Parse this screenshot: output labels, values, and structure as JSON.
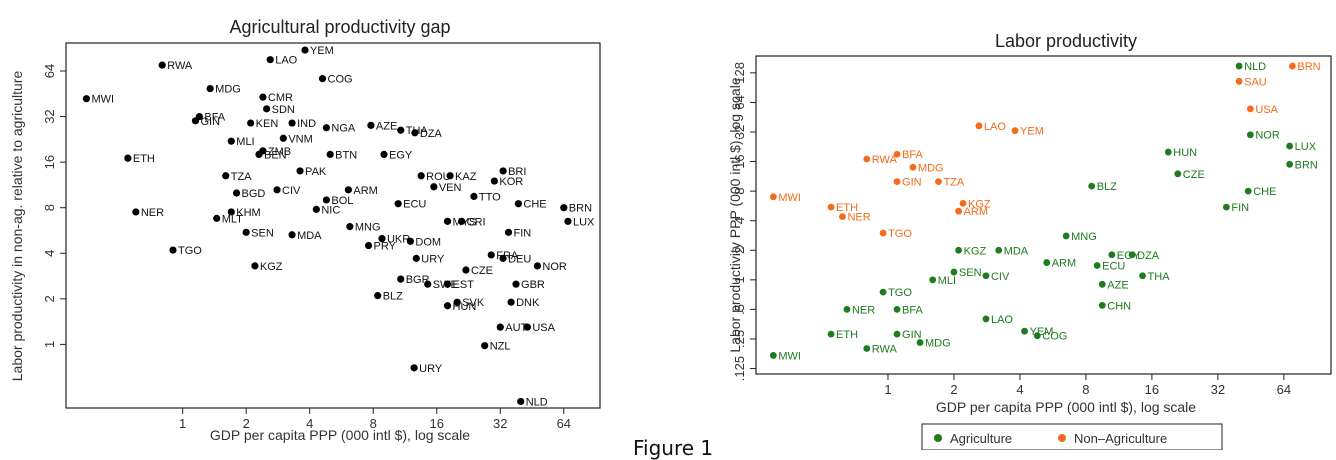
{
  "caption": "Figure 1",
  "chart_data": [
    {
      "type": "scatter",
      "title": "Agricultural productivity gap",
      "xlabel": "GDP per capita PPP (000 intl $), log scale",
      "ylabel": "Labor productivity in non-ag. relative to agriculture",
      "xscale": "log",
      "yscale": "log",
      "xticks": [
        "1",
        "2",
        "4",
        "8",
        "16",
        "32",
        "64"
      ],
      "yticks": [
        "1",
        "2",
        "4",
        "8",
        "16",
        "32",
        "64"
      ],
      "grid": false,
      "points": [
        {
          "label": "RWA",
          "x": 0.8,
          "y": 70
        },
        {
          "label": "LAO",
          "x": 2.6,
          "y": 76
        },
        {
          "label": "YEM",
          "x": 3.8,
          "y": 88
        },
        {
          "label": "COG",
          "x": 4.6,
          "y": 57
        },
        {
          "label": "MWI",
          "x": 0.35,
          "y": 42
        },
        {
          "label": "MDG",
          "x": 1.35,
          "y": 49
        },
        {
          "label": "CMR",
          "x": 2.4,
          "y": 43
        },
        {
          "label": "SDN",
          "x": 2.5,
          "y": 36
        },
        {
          "label": "BFA",
          "x": 1.2,
          "y": 32
        },
        {
          "label": "GIN",
          "x": 1.15,
          "y": 30
        },
        {
          "label": "KEN",
          "x": 2.1,
          "y": 29
        },
        {
          "label": "IND",
          "x": 3.3,
          "y": 29
        },
        {
          "label": "NGA",
          "x": 4.8,
          "y": 27
        },
        {
          "label": "AZE",
          "x": 7.8,
          "y": 28
        },
        {
          "label": "THA",
          "x": 10.8,
          "y": 26
        },
        {
          "label": "DZA",
          "x": 12.6,
          "y": 25
        },
        {
          "label": "MLI",
          "x": 1.7,
          "y": 22
        },
        {
          "label": "VNM",
          "x": 3.0,
          "y": 23
        },
        {
          "label": "ZMB",
          "x": 2.4,
          "y": 19
        },
        {
          "label": "BEN",
          "x": 2.3,
          "y": 18
        },
        {
          "label": "BTN",
          "x": 5.0,
          "y": 18
        },
        {
          "label": "EGY",
          "x": 9.0,
          "y": 18
        },
        {
          "label": "ETH",
          "x": 0.55,
          "y": 17
        },
        {
          "label": "TZA",
          "x": 1.6,
          "y": 13
        },
        {
          "label": "PAK",
          "x": 3.6,
          "y": 14
        },
        {
          "label": "ROU",
          "x": 13.5,
          "y": 13
        },
        {
          "label": "KAZ",
          "x": 18.5,
          "y": 13
        },
        {
          "label": "BGD",
          "x": 1.8,
          "y": 10
        },
        {
          "label": "CIV",
          "x": 2.8,
          "y": 10.5
        },
        {
          "label": "ARM",
          "x": 6.1,
          "y": 10.5
        },
        {
          "label": "BOL",
          "x": 4.8,
          "y": 9
        },
        {
          "label": "VEN",
          "x": 15.5,
          "y": 11
        },
        {
          "label": "TTO",
          "x": 24,
          "y": 9.5
        },
        {
          "label": "BRI",
          "x": 33,
          "y": 14
        },
        {
          "label": "KOR",
          "x": 30,
          "y": 12
        },
        {
          "label": "NER",
          "x": 0.6,
          "y": 7.5
        },
        {
          "label": "KHM",
          "x": 1.7,
          "y": 7.5
        },
        {
          "label": "MLT",
          "x": 1.45,
          "y": 6.8
        },
        {
          "label": "NIC",
          "x": 4.3,
          "y": 7.8
        },
        {
          "label": "ECU",
          "x": 10.5,
          "y": 8.5
        },
        {
          "label": "CHE",
          "x": 39,
          "y": 8.5
        },
        {
          "label": "BRN",
          "x": 64,
          "y": 8
        },
        {
          "label": "LUX",
          "x": 67,
          "y": 6.5
        },
        {
          "label": "MNG",
          "x": 6.2,
          "y": 6
        },
        {
          "label": "MYS",
          "x": 18,
          "y": 6.5
        },
        {
          "label": "CRI",
          "x": 21,
          "y": 6.5
        },
        {
          "label": "SEN",
          "x": 2.0,
          "y": 5.5
        },
        {
          "label": "MDA",
          "x": 3.3,
          "y": 5.3
        },
        {
          "label": "TGO",
          "x": 0.9,
          "y": 4.2
        },
        {
          "label": "PRY",
          "x": 7.6,
          "y": 4.5
        },
        {
          "label": "UKR",
          "x": 8.8,
          "y": 5
        },
        {
          "label": "DOM",
          "x": 12,
          "y": 4.8
        },
        {
          "label": "FIN",
          "x": 35,
          "y": 5.5
        },
        {
          "label": "KGZ",
          "x": 2.2,
          "y": 3.3
        },
        {
          "label": "URY",
          "x": 12.8,
          "y": 3.7
        },
        {
          "label": "FRA",
          "x": 29,
          "y": 3.9
        },
        {
          "label": "DEU",
          "x": 33,
          "y": 3.7
        },
        {
          "label": "NOR",
          "x": 48,
          "y": 3.3
        },
        {
          "label": "CZE",
          "x": 22,
          "y": 3.1
        },
        {
          "label": "BGR",
          "x": 10.8,
          "y": 2.7
        },
        {
          "label": "SWE",
          "x": 14.5,
          "y": 2.5
        },
        {
          "label": "EST",
          "x": 18,
          "y": 2.5
        },
        {
          "label": "GBR",
          "x": 38,
          "y": 2.5
        },
        {
          "label": "BLZ",
          "x": 8.4,
          "y": 2.1
        },
        {
          "label": "SVK",
          "x": 20,
          "y": 1.9
        },
        {
          "label": "HUN",
          "x": 18,
          "y": 1.8
        },
        {
          "label": "DNK",
          "x": 36,
          "y": 1.9
        },
        {
          "label": "AUT",
          "x": 32,
          "y": 1.3
        },
        {
          "label": "USA",
          "x": 43,
          "y": 1.3
        },
        {
          "label": "NZL",
          "x": 27,
          "y": 0.98
        },
        {
          "label": "URY",
          "x": 12.5,
          "y": 0.7
        },
        {
          "label": "NLD",
          "x": 40,
          "y": 0.42
        }
      ]
    },
    {
      "type": "scatter",
      "title": "Labor productivity",
      "xlabel": "GDP per capita PPP (000 intl $), log scale",
      "ylabel": "Labor productivity PPP (000 intl $), log scale",
      "xscale": "log",
      "yscale": "log",
      "xticks": [
        "1",
        "2",
        "4",
        "8",
        "16",
        "32",
        "64"
      ],
      "yticks": [
        ".125",
        ".25",
        ".5",
        "1",
        "2",
        "4",
        "8",
        "16",
        "32",
        "64",
        "128"
      ],
      "grid": false,
      "legend": {
        "position": "bottom",
        "entries": [
          "Agriculture",
          "Non–Agriculture"
        ]
      },
      "series": [
        {
          "name": "Agriculture",
          "color": "#1e7b1e",
          "points": [
            {
              "label": "NLD",
              "x": 40,
              "y": 150
            },
            {
              "label": "LUX",
              "x": 68,
              "y": 23
            },
            {
              "label": "BRN",
              "x": 68,
              "y": 15
            },
            {
              "label": "NOR",
              "x": 45,
              "y": 30
            },
            {
              "label": "HUN",
              "x": 19,
              "y": 20
            },
            {
              "label": "CZE",
              "x": 21,
              "y": 12
            },
            {
              "label": "CHE",
              "x": 44,
              "y": 8
            },
            {
              "label": "FIN",
              "x": 35,
              "y": 5.5
            },
            {
              "label": "BLZ",
              "x": 8.5,
              "y": 9
            },
            {
              "label": "MNG",
              "x": 6.5,
              "y": 2.8
            },
            {
              "label": "KGZ",
              "x": 2.1,
              "y": 2
            },
            {
              "label": "MDA",
              "x": 3.2,
              "y": 2
            },
            {
              "label": "ARM",
              "x": 5.3,
              "y": 1.5
            },
            {
              "label": "ECU",
              "x": 9,
              "y": 1.4
            },
            {
              "label": "EGY",
              "x": 10.5,
              "y": 1.8
            },
            {
              "label": "DZA",
              "x": 13,
              "y": 1.8
            },
            {
              "label": "SEN",
              "x": 2.0,
              "y": 1.2
            },
            {
              "label": "CIV",
              "x": 2.8,
              "y": 1.1
            },
            {
              "label": "THA",
              "x": 14.5,
              "y": 1.1
            },
            {
              "label": "MLI",
              "x": 1.6,
              "y": 1.0
            },
            {
              "label": "TGO",
              "x": 0.95,
              "y": 0.75
            },
            {
              "label": "AZE",
              "x": 9.5,
              "y": 0.9
            },
            {
              "label": "CHN",
              "x": 9.5,
              "y": 0.55
            },
            {
              "label": "NER",
              "x": 0.65,
              "y": 0.5
            },
            {
              "label": "BFA",
              "x": 1.1,
              "y": 0.5
            },
            {
              "label": "LAO",
              "x": 2.8,
              "y": 0.4
            },
            {
              "label": "ETH",
              "x": 0.55,
              "y": 0.28
            },
            {
              "label": "GIN",
              "x": 1.1,
              "y": 0.28
            },
            {
              "label": "RWA",
              "x": 0.8,
              "y": 0.2
            },
            {
              "label": "MDG",
              "x": 1.4,
              "y": 0.23
            },
            {
              "label": "YEM",
              "x": 4.2,
              "y": 0.3
            },
            {
              "label": "COG",
              "x": 4.8,
              "y": 0.27
            },
            {
              "label": "MWI",
              "x": 0.3,
              "y": 0.17
            }
          ]
        },
        {
          "name": "Non–Agriculture",
          "color": "#f46b1b",
          "points": [
            {
              "label": "BRN",
              "x": 70,
              "y": 150
            },
            {
              "label": "SAU",
              "x": 40,
              "y": 105
            },
            {
              "label": "USA",
              "x": 45,
              "y": 55
            },
            {
              "label": "LAO",
              "x": 2.6,
              "y": 37
            },
            {
              "label": "YEM",
              "x": 3.8,
              "y": 33
            },
            {
              "label": "BFA",
              "x": 1.1,
              "y": 19
            },
            {
              "label": "RWA",
              "x": 0.8,
              "y": 17
            },
            {
              "label": "MDG",
              "x": 1.3,
              "y": 14
            },
            {
              "label": "GIN",
              "x": 1.1,
              "y": 10
            },
            {
              "label": "TZA",
              "x": 1.7,
              "y": 10
            },
            {
              "label": "MWI",
              "x": 0.3,
              "y": 7
            },
            {
              "label": "ETH",
              "x": 0.55,
              "y": 5.5
            },
            {
              "label": "NER",
              "x": 0.62,
              "y": 4.4
            },
            {
              "label": "TGO",
              "x": 0.95,
              "y": 3.0
            },
            {
              "label": "KGZ",
              "x": 2.2,
              "y": 6
            },
            {
              "label": "ARM",
              "x": 2.1,
              "y": 5
            }
          ]
        }
      ]
    }
  ]
}
